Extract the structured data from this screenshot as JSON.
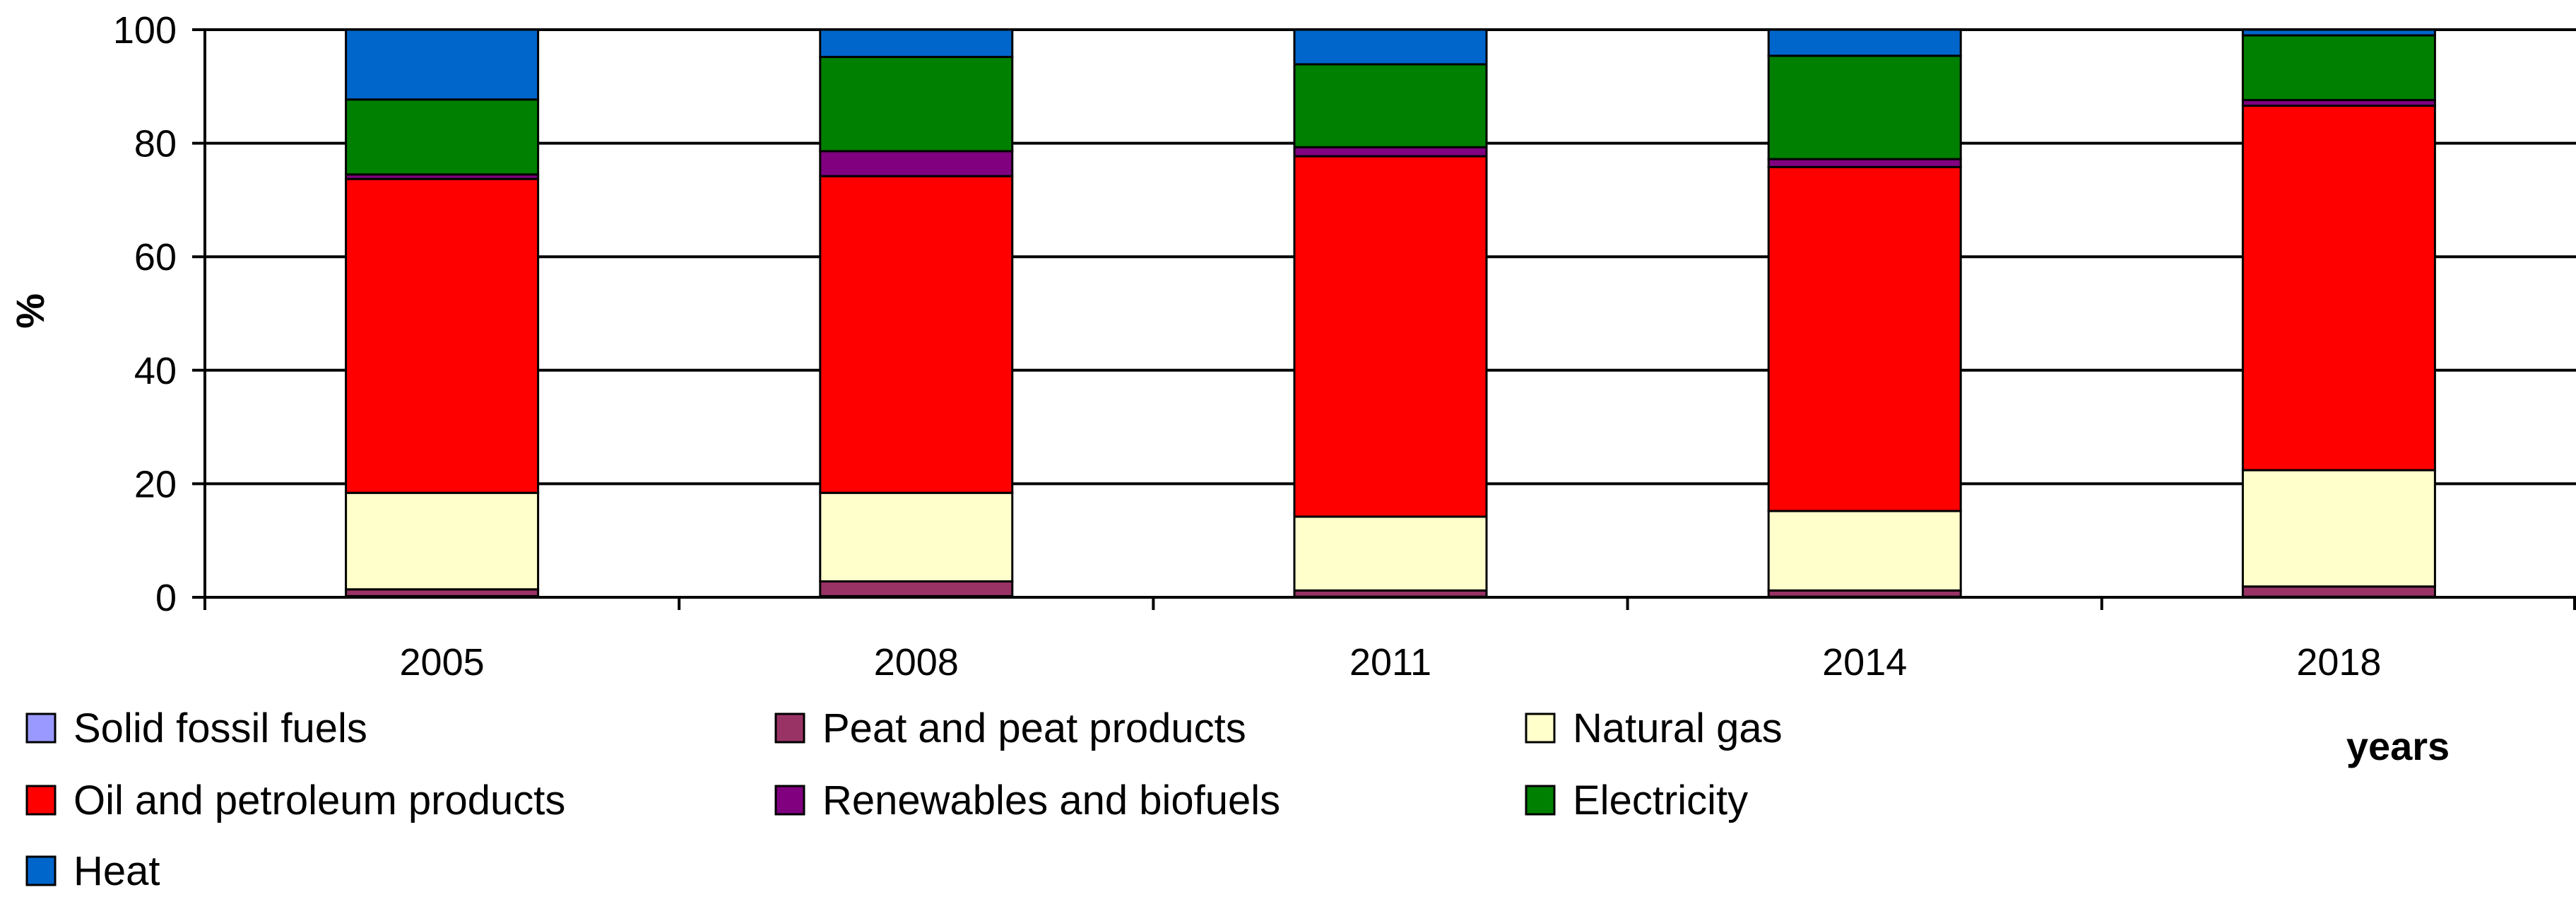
{
  "chart_data": {
    "type": "bar",
    "stacked": true,
    "title": "",
    "ylabel": "%",
    "xlabel": "years",
    "ylim": [
      0,
      100
    ],
    "yticks": [
      "0",
      "20",
      "40",
      "60",
      "80",
      "100"
    ],
    "grid": true,
    "legend_position": "bottom",
    "categories": [
      "2005",
      "2008",
      "2011",
      "2014",
      "2018"
    ],
    "series": [
      {
        "name": "Solid fossil fuels",
        "color": "#9999ff",
        "values": [
          0.2,
          0.2,
          0.1,
          0.1,
          0.1
        ]
      },
      {
        "name": "Peat and peat products",
        "color": "#993366",
        "values": [
          1.2,
          2.6,
          1.1,
          1.1,
          1.8
        ]
      },
      {
        "name": "Natural gas",
        "color": "#ffffcc",
        "values": [
          17.0,
          15.6,
          13.0,
          14.0,
          20.5
        ]
      },
      {
        "name": "Oil and petroleum products",
        "color": "#ff0000",
        "values": [
          55.3,
          55.8,
          63.5,
          60.6,
          64.2
        ]
      },
      {
        "name": "Renewables and biofuels",
        "color": "#800080",
        "values": [
          0.8,
          4.4,
          1.6,
          1.4,
          1.0
        ]
      },
      {
        "name": "Electricity",
        "color": "#008000",
        "values": [
          13.2,
          16.6,
          14.6,
          18.2,
          11.4
        ]
      },
      {
        "name": "Heat",
        "color": "#0066cc",
        "values": [
          12.3,
          4.8,
          6.1,
          4.6,
          1.0
        ]
      }
    ]
  }
}
